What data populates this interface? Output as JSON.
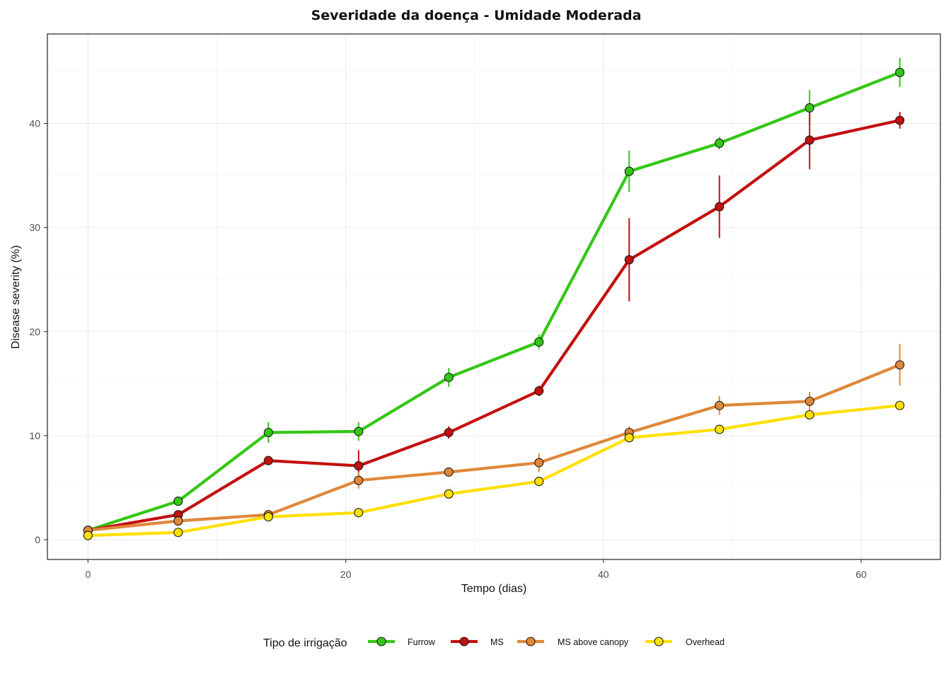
{
  "chart_data": {
    "type": "line",
    "title": "Severidade da doença - Umidade Moderada",
    "xlabel": "Tempo (dias)",
    "ylabel": "Disease severity (%)",
    "xlim": [
      -3.15,
      66.15
    ],
    "ylim": [
      -1.9,
      48.6
    ],
    "xticks": [
      0,
      20,
      40,
      60
    ],
    "yticks": [
      0,
      10,
      20,
      30,
      40
    ],
    "grid": true,
    "legend": {
      "title": "Tipo de irrigação",
      "position": "bottom"
    },
    "x": [
      0,
      7,
      14,
      21,
      28,
      35,
      42,
      49,
      56,
      63
    ],
    "series": [
      {
        "name": "Furrow",
        "color": "#33c715",
        "values": [
          0.9,
          3.7,
          10.3,
          10.4,
          15.6,
          19.0,
          35.4,
          38.1,
          41.5,
          44.9
        ],
        "err": [
          0.1,
          0.3,
          1.0,
          0.9,
          0.9,
          0.7,
          2.0,
          0.6,
          1.7,
          1.4
        ]
      },
      {
        "name": "MS",
        "color": "#c40f0f",
        "values": [
          0.9,
          2.4,
          7.6,
          7.1,
          10.3,
          14.3,
          26.9,
          32.0,
          38.4,
          40.3
        ],
        "err": [
          0.1,
          0.3,
          0.4,
          1.5,
          0.6,
          0.5,
          4.0,
          3.0,
          2.8,
          0.8
        ]
      },
      {
        "name": "MS above canopy",
        "color": "#e0873a",
        "values": [
          0.9,
          1.8,
          2.4,
          5.7,
          6.5,
          7.4,
          10.3,
          12.9,
          13.3,
          16.8
        ],
        "err": [
          0.1,
          0.2,
          0.3,
          0.8,
          0.4,
          0.9,
          0.6,
          0.9,
          0.9,
          2.0
        ]
      },
      {
        "name": "Overhead",
        "color": "#ffe000",
        "values": [
          0.4,
          0.7,
          2.2,
          2.6,
          4.4,
          5.6,
          9.8,
          10.6,
          12.0,
          12.9
        ],
        "err": [
          0.1,
          0.2,
          0.2,
          0.3,
          0.3,
          0.3,
          0.4,
          0.3,
          0.4,
          0.3
        ]
      }
    ]
  }
}
